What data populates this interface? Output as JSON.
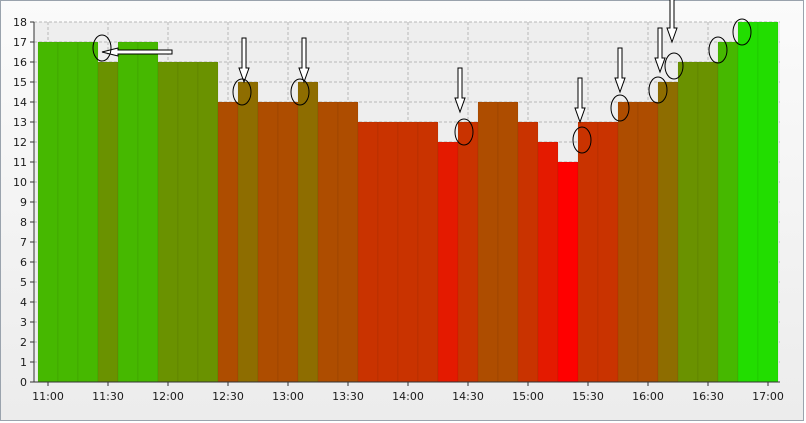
{
  "chart_data": {
    "type": "bar",
    "title": "",
    "xlabel": "",
    "ylabel": "",
    "ylim": [
      0,
      18
    ],
    "yticks": [
      0,
      1,
      2,
      3,
      4,
      5,
      6,
      7,
      8,
      9,
      10,
      11,
      12,
      13,
      14,
      15,
      16,
      17,
      18
    ],
    "x_tick_labels": [
      "11:00",
      "11:30",
      "12:00",
      "12:30",
      "13:00",
      "13:30",
      "14:00",
      "14:30",
      "15:00",
      "15:30",
      "16:00",
      "16:30",
      "17:00"
    ],
    "x_range": [
      "10:53",
      "17:06"
    ],
    "bin_minutes": 10,
    "grid": true,
    "legend": "none",
    "color_scale": {
      "low_value": 11,
      "high_value": 18,
      "low_color": "#ff0000",
      "mid_color": "#a05a00",
      "high_color": "#22dd00"
    },
    "bars": [
      {
        "start": "10:55",
        "value": 17
      },
      {
        "start": "11:05",
        "value": 17
      },
      {
        "start": "11:15",
        "value": 17
      },
      {
        "start": "11:25",
        "value": 16
      },
      {
        "start": "11:35",
        "value": 17
      },
      {
        "start": "11:45",
        "value": 17
      },
      {
        "start": "11:55",
        "value": 16
      },
      {
        "start": "12:05",
        "value": 16
      },
      {
        "start": "12:15",
        "value": 16
      },
      {
        "start": "12:25",
        "value": 14
      },
      {
        "start": "12:35",
        "value": 15
      },
      {
        "start": "12:45",
        "value": 14
      },
      {
        "start": "12:55",
        "value": 14
      },
      {
        "start": "13:05",
        "value": 15
      },
      {
        "start": "13:15",
        "value": 14
      },
      {
        "start": "13:25",
        "value": 14
      },
      {
        "start": "13:35",
        "value": 13
      },
      {
        "start": "13:45",
        "value": 13
      },
      {
        "start": "13:55",
        "value": 13
      },
      {
        "start": "14:05",
        "value": 13
      },
      {
        "start": "14:15",
        "value": 12
      },
      {
        "start": "14:25",
        "value": 13
      },
      {
        "start": "14:35",
        "value": 14
      },
      {
        "start": "14:45",
        "value": 14
      },
      {
        "start": "14:55",
        "value": 13
      },
      {
        "start": "15:05",
        "value": 12
      },
      {
        "start": "15:15",
        "value": 11
      },
      {
        "start": "15:25",
        "value": 13
      },
      {
        "start": "15:35",
        "value": 13
      },
      {
        "start": "15:45",
        "value": 14
      },
      {
        "start": "15:55",
        "value": 14
      },
      {
        "start": "16:05",
        "value": 15
      },
      {
        "start": "16:15",
        "value": 16
      },
      {
        "start": "16:25",
        "value": 16
      },
      {
        "start": "16:35",
        "value": 17
      },
      {
        "start": "16:45",
        "value": 18
      },
      {
        "start": "16:55",
        "value": 18
      }
    ],
    "annotations": [
      {
        "type": "arrow",
        "direction": "left",
        "at_time": "11:27",
        "at_value": 16.5
      },
      {
        "type": "arrow",
        "direction": "down",
        "at_time": "12:38",
        "at_value": 15
      },
      {
        "type": "arrow",
        "direction": "down",
        "at_time": "13:08",
        "at_value": 15
      },
      {
        "type": "arrow",
        "direction": "down",
        "at_time": "14:26",
        "at_value": 13.5
      },
      {
        "type": "arrow",
        "direction": "down",
        "at_time": "15:26",
        "at_value": 13
      },
      {
        "type": "arrow",
        "direction": "down",
        "at_time": "15:46",
        "at_value": 14.5
      },
      {
        "type": "arrow",
        "direction": "down",
        "at_time": "16:06",
        "at_value": 15.5
      },
      {
        "type": "arrow",
        "direction": "down",
        "at_time": "16:12",
        "at_value": 17
      },
      {
        "type": "ellipse",
        "at_time": "11:27",
        "at_value": 16.7
      },
      {
        "type": "ellipse",
        "at_time": "12:37",
        "at_value": 14.5
      },
      {
        "type": "ellipse",
        "at_time": "13:06",
        "at_value": 14.5
      },
      {
        "type": "ellipse",
        "at_time": "14:28",
        "at_value": 12.5
      },
      {
        "type": "ellipse",
        "at_time": "15:27",
        "at_value": 12.1
      },
      {
        "type": "ellipse",
        "at_time": "15:46",
        "at_value": 13.7
      },
      {
        "type": "ellipse",
        "at_time": "16:05",
        "at_value": 14.6
      },
      {
        "type": "ellipse",
        "at_time": "16:13",
        "at_value": 15.8
      },
      {
        "type": "ellipse",
        "at_time": "16:35",
        "at_value": 16.6
      },
      {
        "type": "ellipse",
        "at_time": "16:47",
        "at_value": 17.5
      }
    ]
  }
}
